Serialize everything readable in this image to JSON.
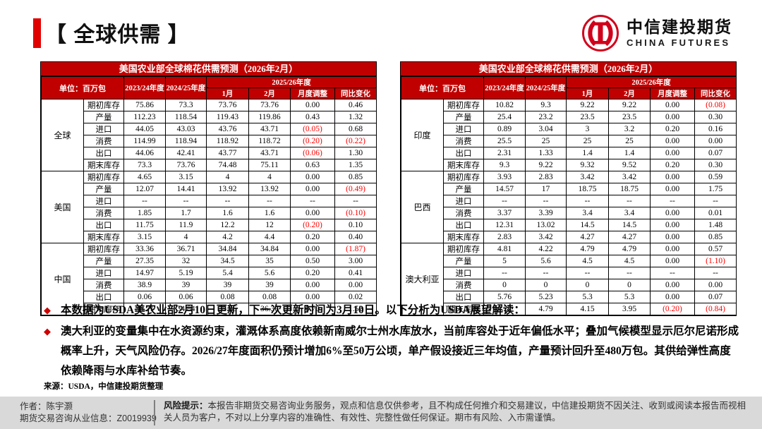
{
  "page": {
    "title": "【 全球供需 】"
  },
  "logo": {
    "cn": "中信建投期货",
    "en": "CHINA FUTURES",
    "brand_red": "#d0021b"
  },
  "colors": {
    "header_red": "#c00000",
    "accent_red": "#e00000",
    "negative_red": "#ff0000",
    "footer_gray": "#d9d9d9"
  },
  "tables": [
    {
      "title": "美国农业部全球棉花供需预测（2026年2月）",
      "unit_label": "单位：百万包",
      "year_cols": [
        "2023/24年度",
        "2024/25年度"
      ],
      "group_header": "2025/26年度",
      "month_cols": [
        "1月",
        "2月",
        "月度调整",
        "同比变化"
      ],
      "regions": [
        {
          "name": "全球",
          "rows": [
            {
              "label": "期初库存",
              "values": [
                "75.86",
                "73.3",
                "73.76",
                "73.76",
                "0.00",
                "0.46"
              ]
            },
            {
              "label": "产量",
              "values": [
                "112.23",
                "118.54",
                "119.43",
                "119.86",
                "0.43",
                "1.32"
              ]
            },
            {
              "label": "进口",
              "values": [
                "44.05",
                "43.03",
                "43.76",
                "43.71",
                "(0.05)",
                "0.68"
              ]
            },
            {
              "label": "消费",
              "values": [
                "114.99",
                "118.94",
                "118.92",
                "118.72",
                "(0.20)",
                "(0.22)"
              ]
            },
            {
              "label": "出口",
              "values": [
                "44.06",
                "42.41",
                "43.77",
                "43.71",
                "(0.06)",
                "1.30"
              ]
            },
            {
              "label": "期末库存",
              "values": [
                "73.3",
                "73.76",
                "74.48",
                "75.11",
                "0.63",
                "1.35"
              ]
            }
          ]
        },
        {
          "name": "美国",
          "rows": [
            {
              "label": "期初库存",
              "values": [
                "4.65",
                "3.15",
                "4",
                "4",
                "0.00",
                "0.85"
              ]
            },
            {
              "label": "产量",
              "values": [
                "12.07",
                "14.41",
                "13.92",
                "13.92",
                "0.00",
                "(0.49)"
              ]
            },
            {
              "label": "进口",
              "values": [
                "--",
                "--",
                "--",
                "--",
                "--",
                "--"
              ]
            },
            {
              "label": "消费",
              "values": [
                "1.85",
                "1.7",
                "1.6",
                "1.6",
                "0.00",
                "(0.10)"
              ]
            },
            {
              "label": "出口",
              "values": [
                "11.75",
                "11.9",
                "12.2",
                "12",
                "(0.20)",
                "0.10"
              ]
            },
            {
              "label": "期末库存",
              "values": [
                "3.15",
                "4",
                "4.2",
                "4.4",
                "0.20",
                "0.40"
              ]
            }
          ]
        },
        {
          "name": "中国",
          "rows": [
            {
              "label": "期初库存",
              "values": [
                "33.36",
                "36.71",
                "34.84",
                "34.84",
                "0.00",
                "(1.87)"
              ]
            },
            {
              "label": "产量",
              "values": [
                "27.35",
                "32",
                "34.5",
                "35",
                "0.50",
                "3.00"
              ]
            },
            {
              "label": "进口",
              "values": [
                "14.97",
                "5.19",
                "5.4",
                "5.6",
                "0.20",
                "0.41"
              ]
            },
            {
              "label": "消费",
              "values": [
                "38.9",
                "39",
                "39",
                "39",
                "0.00",
                "0.00"
              ]
            },
            {
              "label": "出口",
              "values": [
                "0.06",
                "0.06",
                "0.08",
                "0.08",
                "0.00",
                "0.02"
              ]
            },
            {
              "label": "期末库存",
              "values": [
                "36.71",
                "34.84",
                "35.66",
                "36.36",
                "0.70",
                "1.52"
              ]
            }
          ]
        }
      ]
    },
    {
      "title": "美国农业部全球棉花供需预测（2026年2月）",
      "unit_label": "单位：百万包",
      "year_cols": [
        "2023/24年度",
        "2024/25年度"
      ],
      "group_header": "2025/26年度",
      "month_cols": [
        "1月",
        "2月",
        "月度调整",
        "同比变化"
      ],
      "regions": [
        {
          "name": "印度",
          "rows": [
            {
              "label": "期初库存",
              "values": [
                "10.82",
                "9.3",
                "9.22",
                "9.22",
                "0.00",
                "(0.08)"
              ]
            },
            {
              "label": "产量",
              "values": [
                "25.4",
                "23.2",
                "23.5",
                "23.5",
                "0.00",
                "0.30"
              ]
            },
            {
              "label": "进口",
              "values": [
                "0.89",
                "3.04",
                "3",
                "3.2",
                "0.20",
                "0.16"
              ]
            },
            {
              "label": "消费",
              "values": [
                "25.5",
                "25",
                "25",
                "25",
                "0.00",
                "0.00"
              ]
            },
            {
              "label": "出口",
              "values": [
                "2.31",
                "1.33",
                "1.4",
                "1.4",
                "0.00",
                "0.07"
              ]
            },
            {
              "label": "期末库存",
              "values": [
                "9.3",
                "9.22",
                "9.32",
                "9.52",
                "0.20",
                "0.30"
              ]
            }
          ]
        },
        {
          "name": "巴西",
          "rows": [
            {
              "label": "期初库存",
              "values": [
                "3.93",
                "2.83",
                "3.42",
                "3.42",
                "0.00",
                "0.59"
              ]
            },
            {
              "label": "产量",
              "values": [
                "14.57",
                "17",
                "18.75",
                "18.75",
                "0.00",
                "1.75"
              ]
            },
            {
              "label": "进口",
              "values": [
                "--",
                "--",
                "--",
                "--",
                "--",
                "--"
              ]
            },
            {
              "label": "消费",
              "values": [
                "3.37",
                "3.39",
                "3.4",
                "3.4",
                "0.00",
                "0.01"
              ]
            },
            {
              "label": "出口",
              "values": [
                "12.31",
                "13.02",
                "14.5",
                "14.5",
                "0.00",
                "1.48"
              ]
            },
            {
              "label": "期末库存",
              "values": [
                "2.83",
                "3.42",
                "4.27",
                "4.27",
                "0.00",
                "0.85"
              ]
            }
          ]
        },
        {
          "name": "澳大利亚",
          "rows": [
            {
              "label": "期初库存",
              "values": [
                "4.81",
                "4.22",
                "4.79",
                "4.79",
                "0.00",
                "0.57"
              ]
            },
            {
              "label": "产量",
              "values": [
                "5",
                "5.6",
                "4.5",
                "4.5",
                "0.00",
                "(1.10)"
              ]
            },
            {
              "label": "进口",
              "values": [
                "--",
                "--",
                "--",
                "--",
                "--",
                "--"
              ]
            },
            {
              "label": "消费",
              "values": [
                "0",
                "0",
                "0",
                "0",
                "0.00",
                "0.00"
              ]
            },
            {
              "label": "出口",
              "values": [
                "5.76",
                "5.23",
                "5.3",
                "5.3",
                "0.00",
                "0.07"
              ]
            },
            {
              "label": "期末库存",
              "values": [
                "4.22",
                "4.79",
                "4.15",
                "3.95",
                "(0.20)",
                "(0.84)"
              ]
            }
          ]
        }
      ]
    }
  ],
  "bullets": [
    {
      "text": "本数据为USDA美农业部2月10日更新，下一次更新时间为3月10日。以下分析为USDA展望解读："
    },
    {
      "text": "澳大利亚的变量集中在水资源约束，灌溉体系高度依赖新南威尔士州水库放水，当前库容处于近年偏低水平；叠加气候模型显示厄尔尼诺形成概率上升，天气风险仍存。2026/27年度面积仍预计增加6%至50万公顷，单产假设接近三年均值，产量预计回升至480万包。其供给弹性高度依赖降雨与水库补给节奏。"
    }
  ],
  "source_line": "来源：USDA，中信建投期货整理",
  "footer": {
    "author_line1": "作者：陈宇灏",
    "author_line2": "期货交易咨询从业信息：Z0019939",
    "risk_label": "风险提示：",
    "risk_text": "本报告非期货交易咨询业务服务，观点和信息仅供参考，且不构成任何推介和交易建议，中信建投期货不因关注、收到或阅读本报告而视相关人员为客户，不对以上分享内容的准确性、有效性、完整性做任何保证。期市有风险、入市需谨慎。"
  }
}
